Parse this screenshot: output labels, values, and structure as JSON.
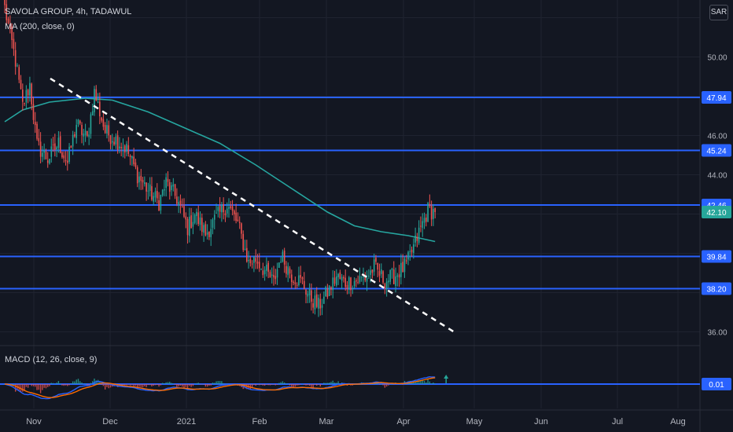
{
  "header": {
    "symbol": "SAVOLA GROUP, 4h, TADAWUL",
    "indicator": "MA (200, close, 0)",
    "macd": "MACD (12, 26, close, 9)"
  },
  "currency_button": "SAR",
  "colors": {
    "background": "#131722",
    "up": "#26a69a",
    "down": "#ef5350",
    "level_line": "#2962ff",
    "ma_line": "#26a6a0",
    "trendline": "#ffffff",
    "macd_line": "#2962ff",
    "signal_line": "#ff6d00"
  },
  "chart_data": [
    {
      "type": "candlestick",
      "title": "SAVOLA GROUP, 4h, TADAWUL",
      "y_axis_ticks": [
        "36.00",
        "44.00",
        "46.00",
        "50.00"
      ],
      "x_axis_labels": [
        "Nov",
        "Dec",
        "2021",
        "Feb",
        "Mar",
        "Apr",
        "May",
        "Jun",
        "Jul",
        "Aug"
      ],
      "ylim": [
        35.5,
        52.3
      ],
      "price_levels": [
        {
          "value": 47.94,
          "label": "47.94"
        },
        {
          "value": 45.24,
          "label": "45.24"
        },
        {
          "value": 42.46,
          "label": "42.46"
        },
        {
          "value": 39.84,
          "label": "39.84"
        },
        {
          "value": 38.2,
          "label": "38.20"
        }
      ],
      "last_price": {
        "value": 42.1,
        "label": "42.10"
      },
      "close_path": [
        [
          0,
          52.5
        ],
        [
          6,
          49.8
        ],
        [
          10,
          47.5
        ],
        [
          14,
          48.6
        ],
        [
          18,
          45.5
        ],
        [
          24,
          44.8
        ],
        [
          30,
          45.6
        ],
        [
          35,
          44.6
        ],
        [
          40,
          46.6
        ],
        [
          46,
          45.8
        ],
        [
          50,
          48.2
        ],
        [
          56,
          46.2
        ],
        [
          62,
          45.8
        ],
        [
          68,
          45.3
        ],
        [
          74,
          44.0
        ],
        [
          80,
          43.2
        ],
        [
          86,
          42.6
        ],
        [
          90,
          43.6
        ],
        [
          96,
          42.8
        ],
        [
          102,
          41.3
        ],
        [
          106,
          42.0
        ],
        [
          112,
          41.0
        ],
        [
          118,
          41.8
        ],
        [
          124,
          42.5
        ],
        [
          130,
          41.5
        ],
        [
          136,
          39.5
        ],
        [
          140,
          39.7
        ],
        [
          146,
          39.0
        ],
        [
          150,
          38.5
        ],
        [
          154,
          39.9
        ],
        [
          160,
          38.9
        ],
        [
          166,
          38.5
        ],
        [
          170,
          37.8
        ],
        [
          175,
          37.3
        ],
        [
          180,
          38.0
        ],
        [
          185,
          38.8
        ],
        [
          190,
          38.5
        ],
        [
          196,
          38.6
        ],
        [
          202,
          38.8
        ],
        [
          206,
          39.3
        ],
        [
          212,
          38.6
        ],
        [
          218,
          38.9
        ],
        [
          224,
          39.4
        ],
        [
          228,
          40.3
        ],
        [
          232,
          41.3
        ],
        [
          236,
          42.2
        ],
        [
          240,
          42.1
        ]
      ],
      "ma_series": [
        [
          0,
          46.7
        ],
        [
          10,
          47.3
        ],
        [
          25,
          47.7
        ],
        [
          45,
          47.9
        ],
        [
          60,
          47.8
        ],
        [
          80,
          47.2
        ],
        [
          100,
          46.4
        ],
        [
          120,
          45.6
        ],
        [
          140,
          44.5
        ],
        [
          160,
          43.3
        ],
        [
          180,
          42.1
        ],
        [
          195,
          41.4
        ],
        [
          210,
          41.1
        ],
        [
          225,
          40.9
        ],
        [
          240,
          40.6
        ]
      ],
      "trendline": [
        [
          0,
          48.9
        ],
        [
          240,
          36.0
        ]
      ]
    },
    {
      "type": "macd",
      "title": "MACD (12, 26, close, 9)",
      "value_label": "0.01",
      "zero_level": 0.01
    }
  ]
}
